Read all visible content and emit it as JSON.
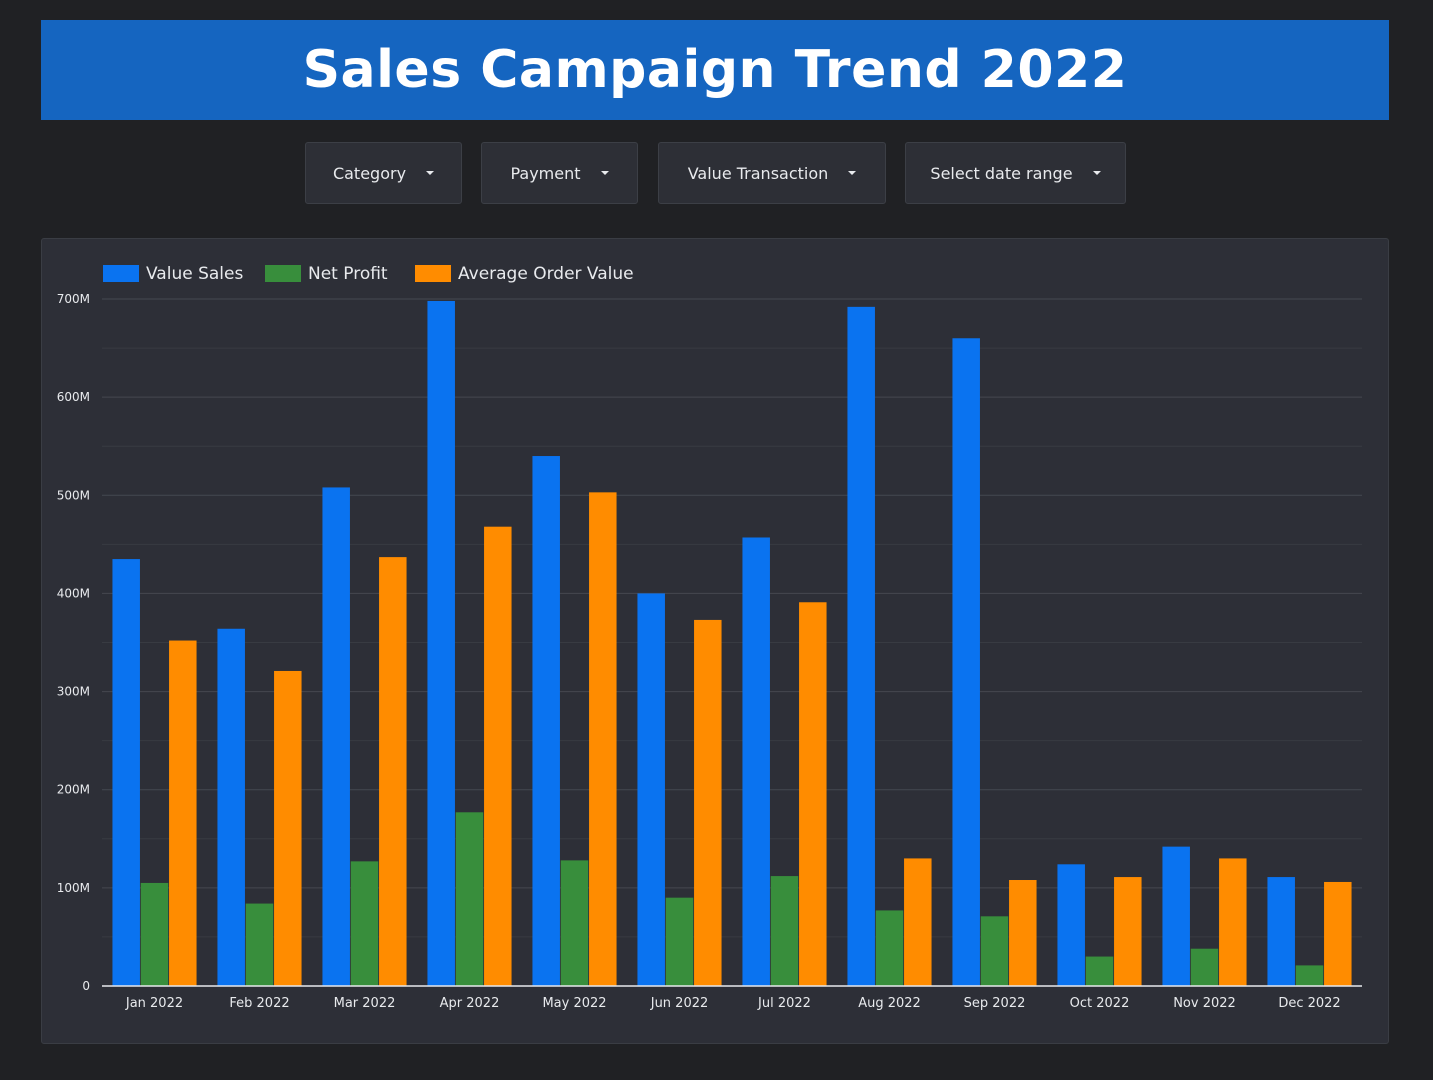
{
  "title": "Sales Campaign Trend 2022",
  "filters": {
    "category": "Category",
    "payment": "Payment",
    "value_transaction": "Value Transaction",
    "date_range": "Select date range"
  },
  "colors": {
    "banner": "#1565c0",
    "value_sales": "#0a73f0",
    "net_profit": "#388e3c",
    "average_order_value": "#ff8c00"
  },
  "chart_data": {
    "type": "bar",
    "categories": [
      "Jan 2022",
      "Feb 2022",
      "Mar 2022",
      "Apr 2022",
      "May 2022",
      "Jun 2022",
      "Jul 2022",
      "Aug 2022",
      "Sep 2022",
      "Oct 2022",
      "Nov 2022",
      "Dec 2022"
    ],
    "series": [
      {
        "name": "Value Sales",
        "color": "#0a73f0",
        "values": [
          435,
          364,
          508,
          698,
          540,
          400,
          457,
          692,
          660,
          124,
          142,
          111
        ]
      },
      {
        "name": "Net Profit",
        "color": "#388e3c",
        "values": [
          105,
          84,
          127,
          177,
          128,
          90,
          112,
          77,
          71,
          30,
          38,
          21
        ]
      },
      {
        "name": "Average Order Value",
        "color": "#ff8c00",
        "values": [
          352,
          321,
          437,
          468,
          503,
          373,
          391,
          130,
          108,
          111,
          130,
          106
        ]
      }
    ],
    "yticks": [
      "0",
      "100M",
      "200M",
      "300M",
      "400M",
      "500M",
      "600M",
      "700M"
    ],
    "ylim": [
      0,
      700
    ],
    "unit": "M",
    "legend_position": "top-left",
    "grid": true
  }
}
